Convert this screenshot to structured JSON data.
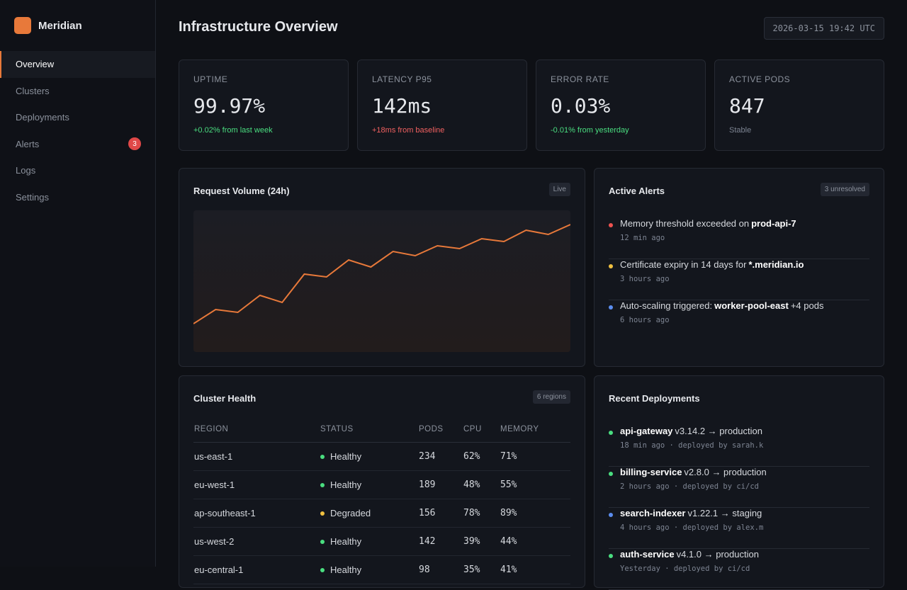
{
  "sidebar": {
    "brand": "Meridian",
    "nav": [
      {
        "label": "Overview",
        "active": true
      },
      {
        "label": "Clusters"
      },
      {
        "label": "Deployments"
      },
      {
        "label": "Alerts",
        "badge": "3"
      },
      {
        "label": "Logs"
      },
      {
        "label": "Settings"
      }
    ]
  },
  "header": {
    "title": "Infrastructure Overview",
    "timestamp": "2026-03-15 19:42 UTC"
  },
  "stats": [
    {
      "label": "UPTIME",
      "value": "99.97%",
      "delta": "+0.02% from last week",
      "delta_color": "#4ade80"
    },
    {
      "label": "LATENCY P95",
      "value": "142ms",
      "delta": "+18ms from baseline",
      "delta_color": "#f06060"
    },
    {
      "label": "ERROR RATE",
      "value": "0.03%",
      "delta": "-0.01% from yesterday",
      "delta_color": "#4ade80"
    },
    {
      "label": "ACTIVE PODS",
      "value": "847",
      "delta": "Stable",
      "delta_color": "#7d8492"
    }
  ],
  "request_chart": {
    "type": "line",
    "title": "Request Volume (24h)",
    "badge": "Live",
    "values": [
      20,
      30,
      28,
      40,
      35,
      55,
      53,
      65,
      60,
      71,
      68,
      75,
      73,
      80,
      78,
      86,
      83,
      90
    ],
    "ylim": [
      0,
      100
    ],
    "color": "#e8793a"
  },
  "alerts": {
    "title": "Active Alerts",
    "badge": "3 unresolved",
    "items": [
      {
        "text": "Memory threshold exceeded on",
        "target": "prod-api-7",
        "time": "12 min ago",
        "color": "#ef5350"
      },
      {
        "text": "Certificate expiry in 14 days for",
        "target": "*.meridian.io",
        "time": "3 hours ago",
        "color": "#f0c040"
      },
      {
        "text": "Auto-scaling triggered:",
        "target": "worker-pool-east",
        "suffix": "+4 pods",
        "time": "6 hours ago",
        "color": "#5b8def"
      }
    ]
  },
  "clusters": {
    "title": "Cluster Health",
    "badge": "6 regions",
    "columns": [
      "REGION",
      "STATUS",
      "PODS",
      "CPU",
      "MEMORY"
    ],
    "rows": [
      {
        "region": "us-east-1",
        "status": "Healthy",
        "status_color": "#4ade80",
        "pods": 234,
        "cpu": "62%",
        "memory": "71%"
      },
      {
        "region": "eu-west-1",
        "status": "Healthy",
        "status_color": "#4ade80",
        "pods": 189,
        "cpu": "48%",
        "memory": "55%"
      },
      {
        "region": "ap-southeast-1",
        "status": "Degraded",
        "status_color": "#f0c040",
        "pods": 156,
        "cpu": "78%",
        "memory": "89%"
      },
      {
        "region": "us-west-2",
        "status": "Healthy",
        "status_color": "#4ade80",
        "pods": 142,
        "cpu": "39%",
        "memory": "44%"
      },
      {
        "region": "eu-central-1",
        "status": "Healthy",
        "status_color": "#4ade80",
        "pods": 98,
        "cpu": "35%",
        "memory": "41%"
      }
    ]
  },
  "deployments": {
    "title": "Recent Deployments",
    "items": [
      {
        "service": "api-gateway",
        "detail": "v3.14.2 → production",
        "meta": "18 min ago · deployed by sarah.k",
        "color": "#4ade80"
      },
      {
        "service": "billing-service",
        "detail": "v2.8.0 → production",
        "meta": "2 hours ago · deployed by ci/cd",
        "color": "#4ade80"
      },
      {
        "service": "search-indexer",
        "detail": "v1.22.1 → staging",
        "meta": "4 hours ago · deployed by alex.m",
        "color": "#5b8def"
      },
      {
        "service": "auth-service",
        "detail": "v4.1.0 → production",
        "meta": "Yesterday · deployed by ci/cd",
        "color": "#4ade80"
      }
    ]
  }
}
